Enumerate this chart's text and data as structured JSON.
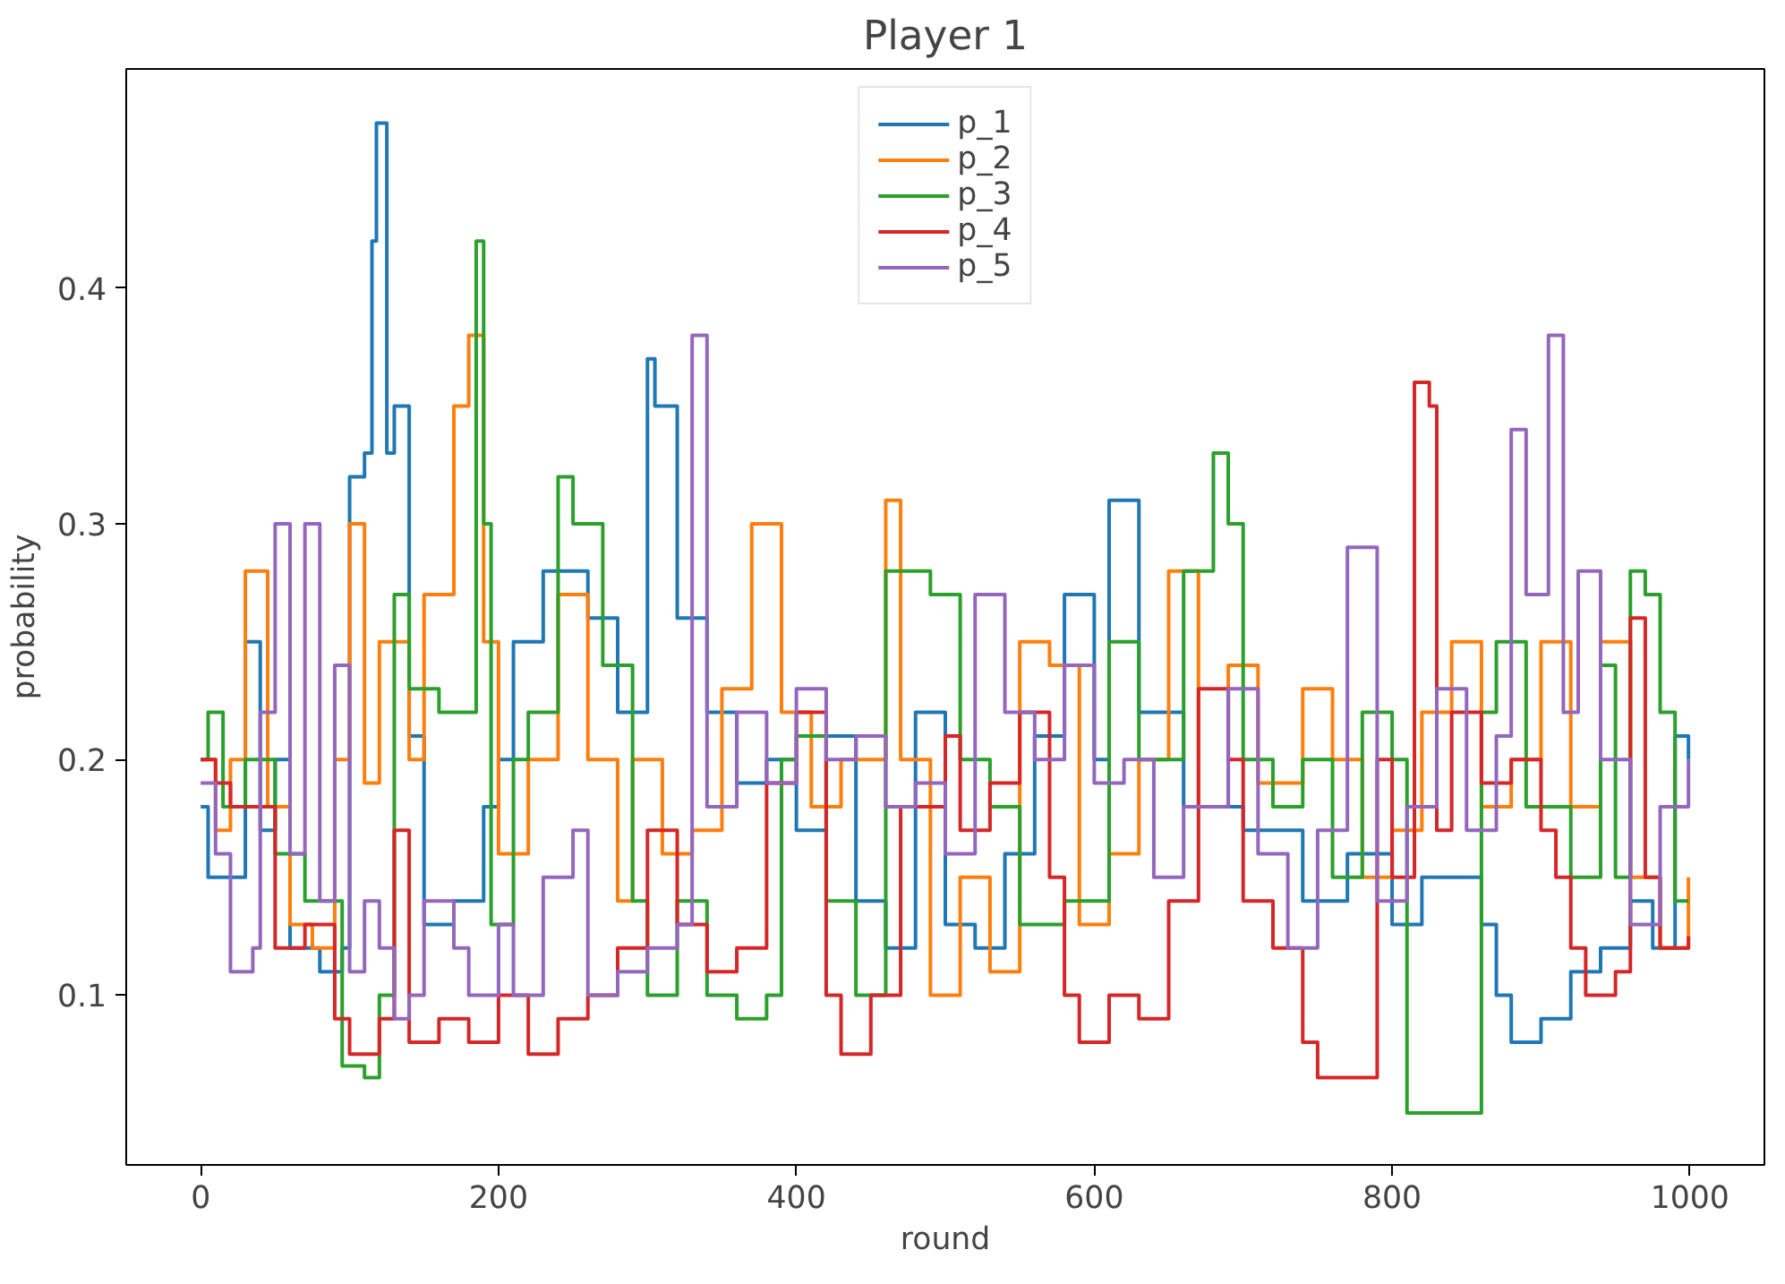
{
  "chart_data": {
    "type": "step",
    "title": "Player 1",
    "xlabel": "round",
    "ylabel": "probability",
    "xlim": [
      -50,
      1050
    ],
    "ylim": [
      0.028,
      0.493
    ],
    "xticks": [
      0,
      200,
      400,
      600,
      800,
      1000
    ],
    "yticks": [
      0.1,
      0.2,
      0.3,
      0.4
    ],
    "grid": false,
    "legend": "top",
    "line_style": "solid",
    "marker": "none",
    "series": [
      {
        "name": "p_1",
        "color": "#1f77b4",
        "x": [
          0,
          5,
          30,
          40,
          50,
          60,
          80,
          95,
          100,
          110,
          115,
          118,
          125,
          130,
          140,
          150,
          170,
          190,
          200,
          210,
          230,
          260,
          280,
          300,
          305,
          320,
          340,
          360,
          380,
          400,
          420,
          440,
          460,
          480,
          500,
          520,
          540,
          560,
          580,
          600,
          610,
          630,
          660,
          700,
          740,
          770,
          800,
          820,
          860,
          870,
          880,
          900,
          920,
          940,
          960,
          975,
          990,
          999
        ],
        "values": [
          0.18,
          0.15,
          0.25,
          0.17,
          0.2,
          0.12,
          0.11,
          0.12,
          0.32,
          0.33,
          0.42,
          0.47,
          0.33,
          0.35,
          0.21,
          0.13,
          0.14,
          0.18,
          0.2,
          0.25,
          0.28,
          0.26,
          0.22,
          0.37,
          0.35,
          0.26,
          0.22,
          0.19,
          0.2,
          0.17,
          0.21,
          0.14,
          0.12,
          0.22,
          0.13,
          0.12,
          0.16,
          0.21,
          0.27,
          0.2,
          0.31,
          0.22,
          0.18,
          0.17,
          0.14,
          0.16,
          0.13,
          0.15,
          0.13,
          0.1,
          0.08,
          0.09,
          0.11,
          0.12,
          0.14,
          0.12,
          0.21,
          0.2
        ]
      },
      {
        "name": "p_2",
        "color": "#ff7f0e",
        "x": [
          0,
          10,
          20,
          30,
          45,
          60,
          75,
          90,
          100,
          110,
          120,
          140,
          150,
          170,
          180,
          190,
          200,
          220,
          240,
          260,
          280,
          290,
          310,
          330,
          350,
          370,
          390,
          410,
          430,
          460,
          470,
          490,
          510,
          530,
          550,
          570,
          590,
          610,
          630,
          650,
          670,
          690,
          710,
          740,
          760,
          780,
          800,
          820,
          840,
          860,
          880,
          900,
          920,
          940,
          960,
          980,
          999
        ],
        "values": [
          0.2,
          0.17,
          0.2,
          0.28,
          0.18,
          0.13,
          0.12,
          0.2,
          0.3,
          0.19,
          0.25,
          0.2,
          0.27,
          0.35,
          0.38,
          0.25,
          0.16,
          0.2,
          0.27,
          0.2,
          0.14,
          0.2,
          0.16,
          0.17,
          0.23,
          0.3,
          0.22,
          0.18,
          0.2,
          0.31,
          0.2,
          0.1,
          0.15,
          0.11,
          0.25,
          0.24,
          0.13,
          0.16,
          0.2,
          0.28,
          0.18,
          0.24,
          0.19,
          0.23,
          0.2,
          0.15,
          0.17,
          0.22,
          0.25,
          0.18,
          0.2,
          0.25,
          0.18,
          0.25,
          0.15,
          0.12,
          0.15
        ]
      },
      {
        "name": "p_3",
        "color": "#2ca02c",
        "x": [
          0,
          5,
          15,
          30,
          50,
          70,
          95,
          110,
          120,
          130,
          140,
          160,
          185,
          190,
          195,
          210,
          220,
          240,
          250,
          270,
          290,
          300,
          320,
          340,
          360,
          380,
          390,
          400,
          420,
          440,
          460,
          490,
          510,
          530,
          550,
          580,
          610,
          630,
          660,
          680,
          690,
          700,
          720,
          740,
          760,
          780,
          800,
          810,
          850,
          860,
          870,
          890,
          920,
          940,
          950,
          960,
          970,
          980,
          990,
          999
        ],
        "values": [
          0.2,
          0.22,
          0.18,
          0.2,
          0.16,
          0.14,
          0.07,
          0.065,
          0.1,
          0.27,
          0.23,
          0.22,
          0.42,
          0.3,
          0.13,
          0.2,
          0.22,
          0.32,
          0.3,
          0.24,
          0.14,
          0.1,
          0.14,
          0.1,
          0.09,
          0.1,
          0.2,
          0.21,
          0.14,
          0.1,
          0.28,
          0.27,
          0.2,
          0.18,
          0.13,
          0.14,
          0.25,
          0.2,
          0.28,
          0.33,
          0.3,
          0.2,
          0.18,
          0.2,
          0.15,
          0.22,
          0.2,
          0.05,
          0.05,
          0.22,
          0.25,
          0.18,
          0.15,
          0.24,
          0.15,
          0.28,
          0.27,
          0.22,
          0.14,
          0.14
        ]
      },
      {
        "name": "p_4",
        "color": "#d62728",
        "x": [
          0,
          10,
          20,
          50,
          70,
          90,
          100,
          120,
          130,
          140,
          160,
          180,
          200,
          220,
          240,
          260,
          280,
          300,
          320,
          340,
          360,
          380,
          400,
          420,
          430,
          450,
          470,
          500,
          510,
          530,
          550,
          570,
          580,
          590,
          610,
          630,
          650,
          670,
          690,
          700,
          720,
          740,
          750,
          780,
          790,
          800,
          815,
          825,
          830,
          840,
          860,
          880,
          900,
          910,
          920,
          930,
          950,
          960,
          970,
          980,
          999
        ],
        "values": [
          0.2,
          0.19,
          0.18,
          0.12,
          0.13,
          0.09,
          0.075,
          0.09,
          0.17,
          0.08,
          0.09,
          0.08,
          0.1,
          0.075,
          0.09,
          0.1,
          0.12,
          0.17,
          0.13,
          0.11,
          0.12,
          0.19,
          0.22,
          0.1,
          0.075,
          0.1,
          0.18,
          0.21,
          0.17,
          0.19,
          0.22,
          0.15,
          0.1,
          0.08,
          0.1,
          0.09,
          0.14,
          0.23,
          0.2,
          0.14,
          0.12,
          0.08,
          0.065,
          0.065,
          0.2,
          0.15,
          0.36,
          0.35,
          0.17,
          0.22,
          0.19,
          0.2,
          0.17,
          0.15,
          0.12,
          0.1,
          0.11,
          0.26,
          0.15,
          0.12,
          0.125
        ]
      },
      {
        "name": "p_5",
        "color": "#9467bd",
        "x": [
          0,
          10,
          20,
          35,
          40,
          50,
          60,
          70,
          80,
          90,
          100,
          110,
          120,
          130,
          140,
          150,
          170,
          180,
          200,
          210,
          230,
          250,
          260,
          280,
          300,
          320,
          330,
          340,
          360,
          380,
          400,
          420,
          440,
          460,
          480,
          500,
          520,
          540,
          560,
          580,
          600,
          620,
          640,
          660,
          690,
          710,
          730,
          750,
          770,
          790,
          810,
          830,
          850,
          870,
          880,
          890,
          905,
          915,
          925,
          940,
          960,
          980,
          999
        ],
        "values": [
          0.19,
          0.16,
          0.11,
          0.12,
          0.22,
          0.3,
          0.16,
          0.3,
          0.14,
          0.24,
          0.11,
          0.14,
          0.12,
          0.09,
          0.1,
          0.14,
          0.12,
          0.1,
          0.13,
          0.1,
          0.15,
          0.17,
          0.1,
          0.11,
          0.12,
          0.13,
          0.38,
          0.18,
          0.22,
          0.19,
          0.23,
          0.2,
          0.21,
          0.18,
          0.19,
          0.16,
          0.27,
          0.22,
          0.2,
          0.24,
          0.19,
          0.2,
          0.15,
          0.18,
          0.23,
          0.16,
          0.12,
          0.17,
          0.29,
          0.14,
          0.18,
          0.23,
          0.17,
          0.21,
          0.34,
          0.27,
          0.38,
          0.22,
          0.28,
          0.2,
          0.13,
          0.18,
          0.2
        ]
      }
    ]
  }
}
